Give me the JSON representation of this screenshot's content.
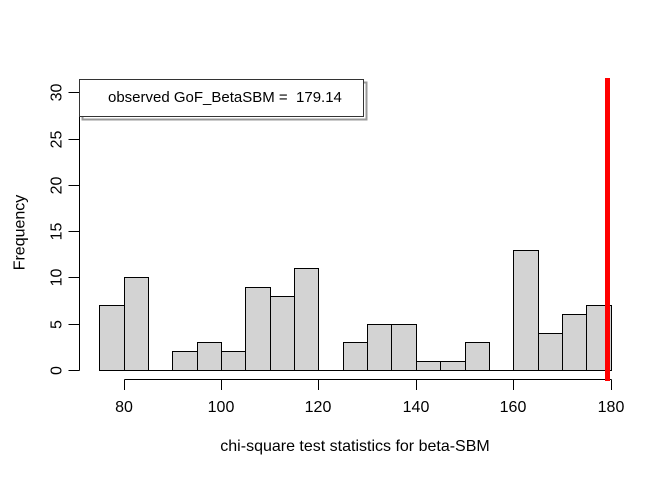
{
  "chart_data": {
    "type": "bar",
    "subtype": "histogram",
    "title": "",
    "xlabel": "chi-square test statistics for beta-SBM",
    "ylabel": "Frequency",
    "bin_start": 75,
    "bin_width": 5,
    "counts": [
      7,
      10,
      0,
      2,
      3,
      2,
      9,
      8,
      11,
      0,
      3,
      5,
      5,
      1,
      1,
      3,
      0,
      13,
      4,
      6,
      7
    ],
    "x_ticks": [
      80,
      100,
      120,
      140,
      160,
      180
    ],
    "y_ticks": [
      0,
      5,
      10,
      15,
      20,
      25,
      30
    ],
    "xlim": [
      75,
      180
    ],
    "ylim": [
      0,
      31
    ],
    "grid": false,
    "legend_position": "topleft",
    "legend": {
      "label": "observed GoF_BetaSBM =  179.14"
    },
    "observed_value": 179.14,
    "colors": {
      "bar_fill": "#d3d3d3",
      "bar_border": "#000000",
      "observed_line": "#ff0000",
      "axis": "#000000",
      "legend_border": "#333333",
      "legend_shadow": "#999999",
      "background": "#ffffff"
    }
  }
}
